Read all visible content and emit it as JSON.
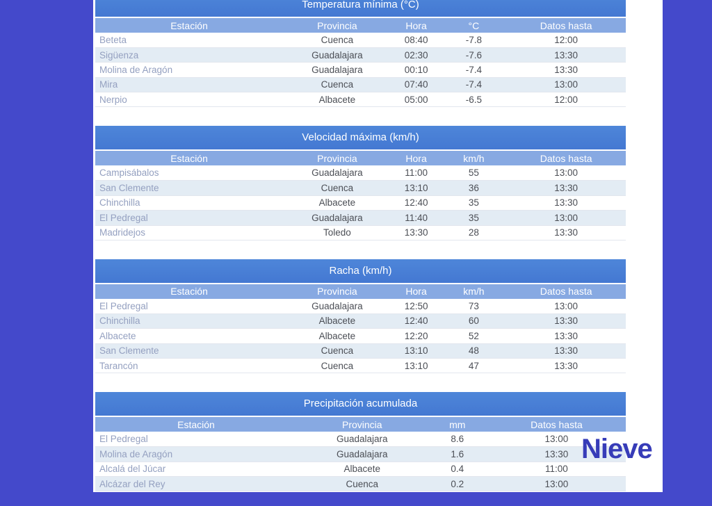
{
  "colors": {
    "page_background": "#4449cb",
    "content_background": "#ffffff",
    "title_bar": "#4a82d8",
    "header_row": "#87a9e2",
    "row_alt": "#e3ecf4",
    "station_text": "#94a0c0",
    "cell_text": "#4b4e55",
    "overlay_text": "#373cb8"
  },
  "overlay": {
    "label": "Nieve"
  },
  "tables": [
    {
      "title": "Temperatura mínima (°C)",
      "columns": [
        "Estación",
        "Provincia",
        "Hora",
        "°C",
        "Datos hasta"
      ],
      "rows": [
        [
          "Beteta",
          "Cuenca",
          "08:40",
          "-7.8",
          "12:00"
        ],
        [
          "Sigüenza",
          "Guadalajara",
          "02:30",
          "-7.6",
          "13:30"
        ],
        [
          "Molina de Aragón",
          "Guadalajara",
          "00:10",
          "-7.4",
          "13:30"
        ],
        [
          "Mira",
          "Cuenca",
          "07:40",
          "-7.4",
          "13:00"
        ],
        [
          "Nerpio",
          "Albacete",
          "05:00",
          "-6.5",
          "12:00"
        ]
      ]
    },
    {
      "title": "Velocidad máxima (km/h)",
      "columns": [
        "Estación",
        "Provincia",
        "Hora",
        "km/h",
        "Datos hasta"
      ],
      "rows": [
        [
          "Campisábalos",
          "Guadalajara",
          "11:00",
          "55",
          "13:00"
        ],
        [
          "San Clemente",
          "Cuenca",
          "13:10",
          "36",
          "13:30"
        ],
        [
          "Chinchilla",
          "Albacete",
          "12:40",
          "35",
          "13:30"
        ],
        [
          "El Pedregal",
          "Guadalajara",
          "11:40",
          "35",
          "13:00"
        ],
        [
          "Madridejos",
          "Toledo",
          "13:30",
          "28",
          "13:30"
        ]
      ]
    },
    {
      "title": "Racha (km/h)",
      "columns": [
        "Estación",
        "Provincia",
        "Hora",
        "km/h",
        "Datos hasta"
      ],
      "rows": [
        [
          "El Pedregal",
          "Guadalajara",
          "12:50",
          "73",
          "13:00"
        ],
        [
          "Chinchilla",
          "Albacete",
          "12:40",
          "60",
          "13:30"
        ],
        [
          "Albacete",
          "Albacete",
          "12:20",
          "52",
          "13:30"
        ],
        [
          "San Clemente",
          "Cuenca",
          "13:10",
          "48",
          "13:30"
        ],
        [
          "Tarancón",
          "Cuenca",
          "13:10",
          "47",
          "13:30"
        ]
      ]
    },
    {
      "title": "Precipitación acumulada",
      "columns": [
        "Estación",
        "Provincia",
        "mm",
        "Datos hasta"
      ],
      "rows": [
        [
          "El Pedregal",
          "Guadalajara",
          "8.6",
          "13:00"
        ],
        [
          "Molina de Aragón",
          "Guadalajara",
          "1.6",
          "13:30"
        ],
        [
          "Alcalá del Júcar",
          "Albacete",
          "0.4",
          "11:00"
        ],
        [
          "Alcázar del Rey",
          "Cuenca",
          "0.2",
          "13:00"
        ]
      ]
    }
  ]
}
